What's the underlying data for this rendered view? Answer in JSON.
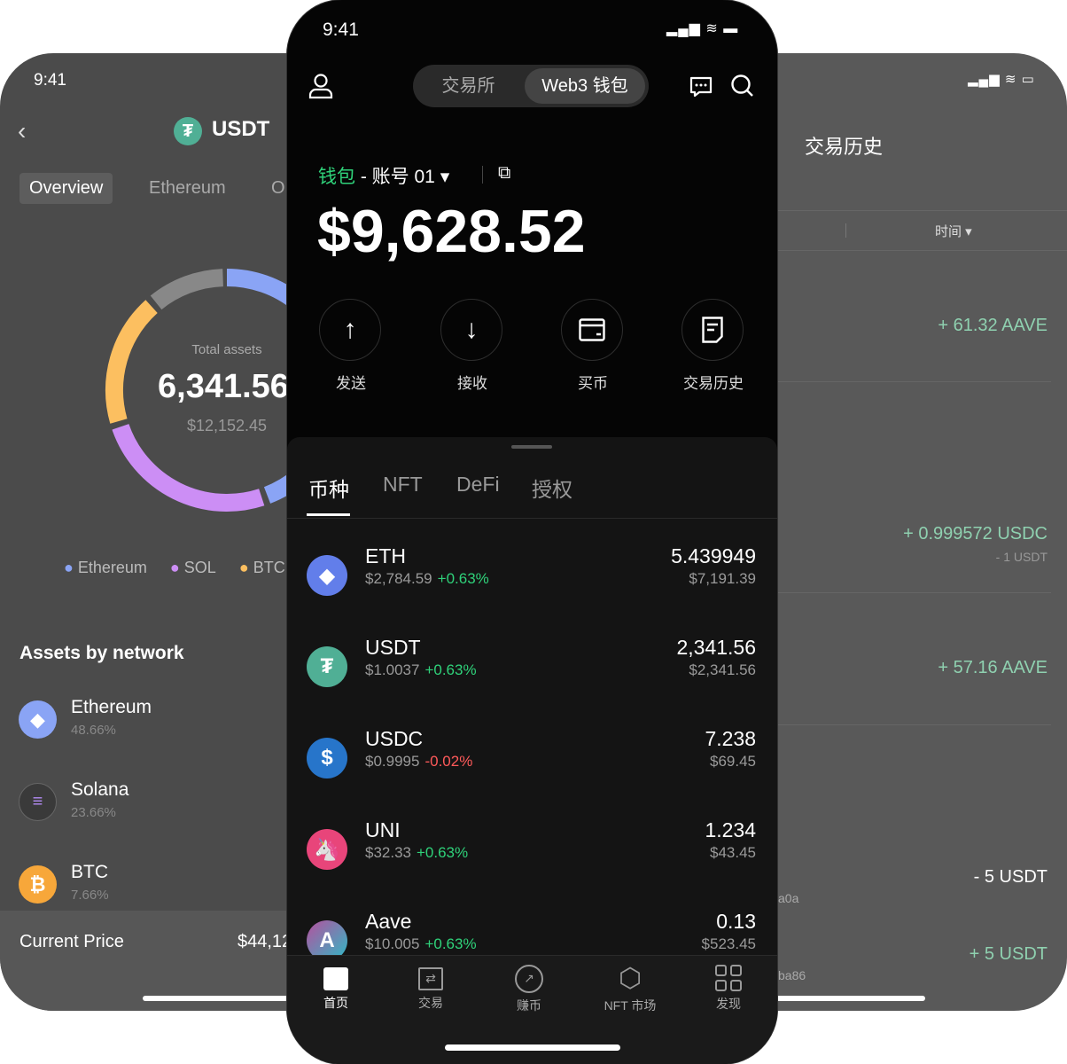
{
  "left": {
    "time": "9:41",
    "title": "USDT",
    "tabs": [
      "Overview",
      "Ethereum",
      "O"
    ],
    "total_label": "Total assets",
    "total_value": "6,341.56",
    "total_usd": "$12,152.45",
    "legend": [
      {
        "name": "Ethereum",
        "color": "#8aa4f5"
      },
      {
        "name": "SOL",
        "color": "#cc8ef5"
      },
      {
        "name": "BTC",
        "color": "#fcbf60"
      }
    ],
    "donut_colors": {
      "ethereum": "#8aa4f5",
      "sol": "#cc8ef5",
      "btc": "#fcbf60",
      "other": "#888888"
    },
    "section_title": "Assets by network",
    "networks": [
      {
        "name": "Ethereum",
        "pct": "48.66%"
      },
      {
        "name": "Solana",
        "pct": "23.66%"
      },
      {
        "name": "BTC",
        "pct": "7.66%"
      }
    ],
    "current_price_label": "Current Price",
    "current_price": "$44,12"
  },
  "center": {
    "time": "9:41",
    "toggle": [
      "交易所",
      "Web3 钱包"
    ],
    "wallet_label": "钱包",
    "account": "- 账号 01",
    "balance": "$9,628.52",
    "actions": [
      "发送",
      "接收",
      "买币",
      "交易历史"
    ],
    "tabs": [
      "币种",
      "NFT",
      "DeFi",
      "授权"
    ],
    "tokens": [
      {
        "symbol": "ETH",
        "price": "$2,784.59",
        "change": "+0.63%",
        "up": true,
        "amount": "5.439949",
        "value": "$7,191.39"
      },
      {
        "symbol": "USDT",
        "price": "$1.0037",
        "change": "+0.63%",
        "up": true,
        "amount": "2,341.56",
        "value": "$2,341.56"
      },
      {
        "symbol": "USDC",
        "price": "$0.9995",
        "change": "-0.02%",
        "up": false,
        "amount": "7.238",
        "value": "$69.45"
      },
      {
        "symbol": "UNI",
        "price": "$32.33",
        "change": "+0.63%",
        "up": true,
        "amount": "1.234",
        "value": "$43.45"
      },
      {
        "symbol": "Aave",
        "price": "$10.005",
        "change": "+0.63%",
        "up": true,
        "amount": "0.13",
        "value": "$523.45"
      }
    ],
    "nav": [
      "首页",
      "交易",
      "赚币",
      "NFT 市场",
      "发现"
    ],
    "accent": "#2fd27a"
  },
  "right": {
    "title": "交易历史",
    "filter": "时间",
    "amounts": [
      "+ 61.32 AAVE",
      "+ 0.999572 USDC",
      "- 1 USDT",
      "+ 57.16 AAVE",
      "- 5 USDT",
      "+ 5 USDT"
    ],
    "addr_fragments": [
      "a0a",
      "ba86"
    ]
  }
}
